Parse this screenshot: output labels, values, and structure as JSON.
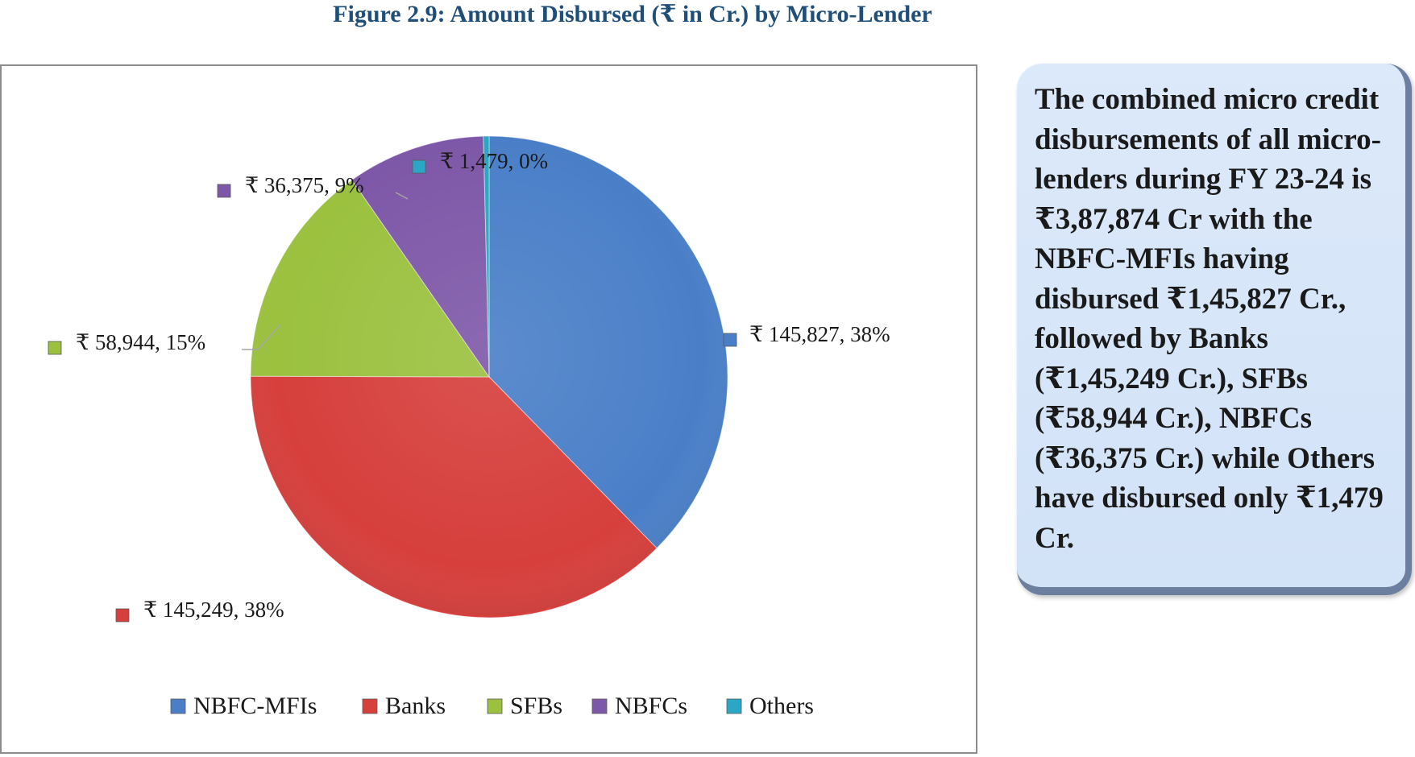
{
  "figure": {
    "title": "Figure 2.9: Amount Disbursed (₹ in Cr.) by Micro-Lender"
  },
  "chart_data": {
    "type": "pie",
    "title": "Figure 2.9: Amount Disbursed (₹ in Cr.) by Micro-Lender",
    "legend_position": "bottom",
    "slices": [
      {
        "name": "NBFC-MFIs",
        "value": 145827,
        "percent": 38,
        "label": "₹ 145,827, 38%",
        "color": "#4a7fc8"
      },
      {
        "name": "Banks",
        "value": 145249,
        "percent": 38,
        "label": "₹ 145,249, 38%",
        "color": "#d63f3c"
      },
      {
        "name": "SFBs",
        "value": 58944,
        "percent": 15,
        "label": "₹ 58,944, 15%",
        "color": "#9bc13f"
      },
      {
        "name": "NBFCs",
        "value": 36375,
        "percent": 9,
        "label": "₹ 36,375, 9%",
        "color": "#7e58a8"
      },
      {
        "name": "Others",
        "value": 1479,
        "percent": 0,
        "label": "₹ 1,479, 0%",
        "color": "#2ba6c4"
      }
    ]
  },
  "callout": {
    "text": "The combined micro credit disbursements of all micro-lenders during FY 23-24 is ₹3,87,874 Cr with the NBFC-MFIs having disbursed ₹1,45,827 Cr., followed by Banks (₹1,45,249 Cr.), SFBs (₹58,944 Cr.), NBFCs (₹36,375 Cr.) while Others have disbursed only ₹1,479 Cr."
  }
}
